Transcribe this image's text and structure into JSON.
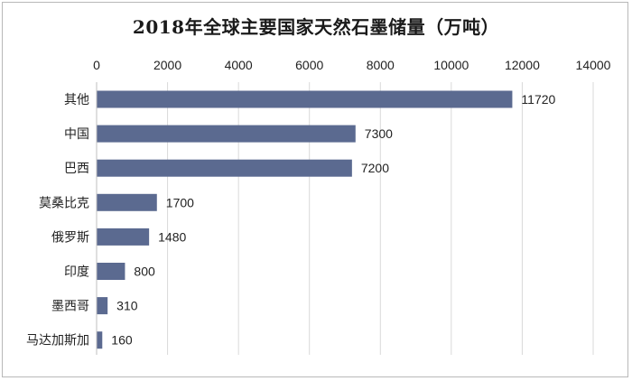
{
  "chart_data": {
    "type": "bar",
    "orientation": "horizontal",
    "title": "2018年全球主要国家天然石墨储量（万吨）",
    "categories": [
      "其他",
      "中国",
      "巴西",
      "莫桑比克",
      "俄罗斯",
      "印度",
      "墨西哥",
      "马达加斯加"
    ],
    "values": [
      11720,
      7300,
      7200,
      1700,
      1480,
      800,
      310,
      160
    ],
    "x_ticks": [
      "0",
      "2000",
      "4000",
      "6000",
      "8000",
      "10000",
      "12000",
      "14000"
    ],
    "xlim": [
      0,
      14000
    ],
    "x_axis_position": "top",
    "grid": "vertical",
    "bar_color": "#5b6a90",
    "data_labels": [
      "11720",
      "7300",
      "7200",
      "1700",
      "1480",
      "800",
      "310",
      "160"
    ]
  }
}
